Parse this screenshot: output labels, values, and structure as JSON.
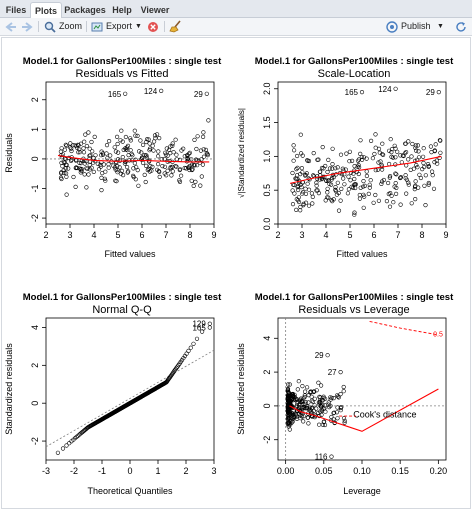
{
  "tabs": [
    {
      "label": "Files",
      "active": false
    },
    {
      "label": "Plots",
      "active": true
    },
    {
      "label": "Packages",
      "active": false
    },
    {
      "label": "Help",
      "active": false
    },
    {
      "label": "Viewer",
      "active": false
    }
  ],
  "toolbar": {
    "zoom_label": "Zoom",
    "export_label": "Export",
    "publish_label": "Publish",
    "icons": [
      "back-arrow-icon",
      "forward-arrow-icon",
      "zoom-icon",
      "export-icon",
      "remove-plot-icon",
      "broom-icon",
      "publish-icon",
      "refresh-icon"
    ]
  },
  "chart_data": [
    {
      "type": "scatter",
      "supertitle": "Model.1  for  GallonsPer100Miles :  single test",
      "title": "Residuals vs Fitted",
      "xlabel": "Fitted values",
      "ylabel": "Residuals",
      "xlim": [
        2,
        9
      ],
      "ylim": [
        -2.2,
        2.6
      ],
      "xticks": [
        "2",
        "3",
        "4",
        "5",
        "6",
        "7",
        "8",
        "9"
      ],
      "yticks": [
        "-2",
        "-1",
        "0",
        "1",
        "2"
      ],
      "point_count": 300,
      "smoother": {
        "color": "#ff0000",
        "x": [
          2.5,
          3,
          4,
          5,
          6,
          7,
          8,
          8.8
        ],
        "y": [
          0.12,
          0.05,
          -0.05,
          -0.08,
          -0.05,
          -0.08,
          -0.1,
          -0.1
        ]
      },
      "reference_line": {
        "y": 0
      },
      "labeled_points": [
        {
          "label": "165",
          "x": 5.3,
          "y": 2.2
        },
        {
          "label": "124",
          "x": 6.8,
          "y": 2.3
        },
        {
          "label": "29",
          "x": 8.7,
          "y": 2.2
        }
      ]
    },
    {
      "type": "scatter",
      "supertitle": "Model.1  for  GallonsPer100Miles :  single test",
      "title": "Scale-Location",
      "xlabel": "Fitted values",
      "ylabel": "√|Standardized residuals|",
      "xlim": [
        2,
        9
      ],
      "ylim": [
        0,
        2.1
      ],
      "xticks": [
        "2",
        "3",
        "4",
        "5",
        "6",
        "7",
        "8",
        "9"
      ],
      "yticks": [
        "0.0",
        "0.5",
        "1.0",
        "1.5",
        "2.0"
      ],
      "point_count": 300,
      "smoother": {
        "color": "#ff0000",
        "x": [
          2.5,
          3.5,
          4.5,
          5.5,
          6.5,
          7.5,
          8.8
        ],
        "y": [
          0.6,
          0.68,
          0.75,
          0.8,
          0.85,
          0.9,
          1.0
        ]
      },
      "labeled_points": [
        {
          "label": "165",
          "x": 5.5,
          "y": 1.95
        },
        {
          "label": "124",
          "x": 6.9,
          "y": 2.0
        },
        {
          "label": "29",
          "x": 8.7,
          "y": 1.95
        }
      ]
    },
    {
      "type": "scatter",
      "supertitle": "Model.1  for  GallonsPer100Miles :  single test",
      "title": "Normal Q-Q",
      "xlabel": "Theoretical Quantiles",
      "ylabel": "Standardized residuals",
      "xlim": [
        -3,
        3
      ],
      "ylim": [
        -3,
        4.5
      ],
      "xticks": [
        "-3",
        "-2",
        "-1",
        "0",
        "1",
        "2",
        "3"
      ],
      "yticks": [
        "-2",
        "0",
        "2",
        "4"
      ],
      "point_count": 300,
      "reference_line": {
        "style": "dotted",
        "x": [
          -3,
          3
        ],
        "y": [
          -2.3,
          2.8
        ]
      },
      "labeled_points": [
        {
          "label": "129",
          "x": 2.85,
          "y": 4.2
        },
        {
          "label": "165",
          "x": 2.85,
          "y": 4.0
        }
      ]
    },
    {
      "type": "scatter",
      "supertitle": "Model.1  for  GallonsPer100Miles :  single test",
      "title": "Residuals vs Leverage",
      "xlabel": "Leverage",
      "ylabel": "Standardized residuals",
      "xlim": [
        -0.01,
        0.21
      ],
      "ylim": [
        -3.2,
        5.2
      ],
      "xticks": [
        "0.00",
        "0.05",
        "0.10",
        "0.15",
        "0.20"
      ],
      "yticks": [
        "-2",
        "0",
        "2",
        "4"
      ],
      "point_count": 300,
      "smoother": {
        "color": "#ff0000",
        "x": [
          0.005,
          0.02,
          0.04,
          0.06,
          0.08,
          0.1,
          0.2
        ],
        "y": [
          0.0,
          -0.35,
          -0.6,
          -0.9,
          -1.2,
          -1.5,
          1.0
        ]
      },
      "cooks_distance": {
        "label": "Cook's distance",
        "level_label": "0.5",
        "x": [
          0.11,
          0.15,
          0.2
        ],
        "y": [
          5.0,
          4.6,
          4.2
        ]
      },
      "labeled_points": [
        {
          "label": "29",
          "x": 0.055,
          "y": 3.0
        },
        {
          "label": "27",
          "x": 0.072,
          "y": 2.0
        },
        {
          "label": "116",
          "x": 0.06,
          "y": -3.0
        }
      ]
    }
  ],
  "colors": {
    "points": "#000000",
    "smoother": "#ff0000",
    "reference": "#808080",
    "toolbar_bg": "#f3f5f8",
    "tab_bg": "#e4e8ee"
  }
}
